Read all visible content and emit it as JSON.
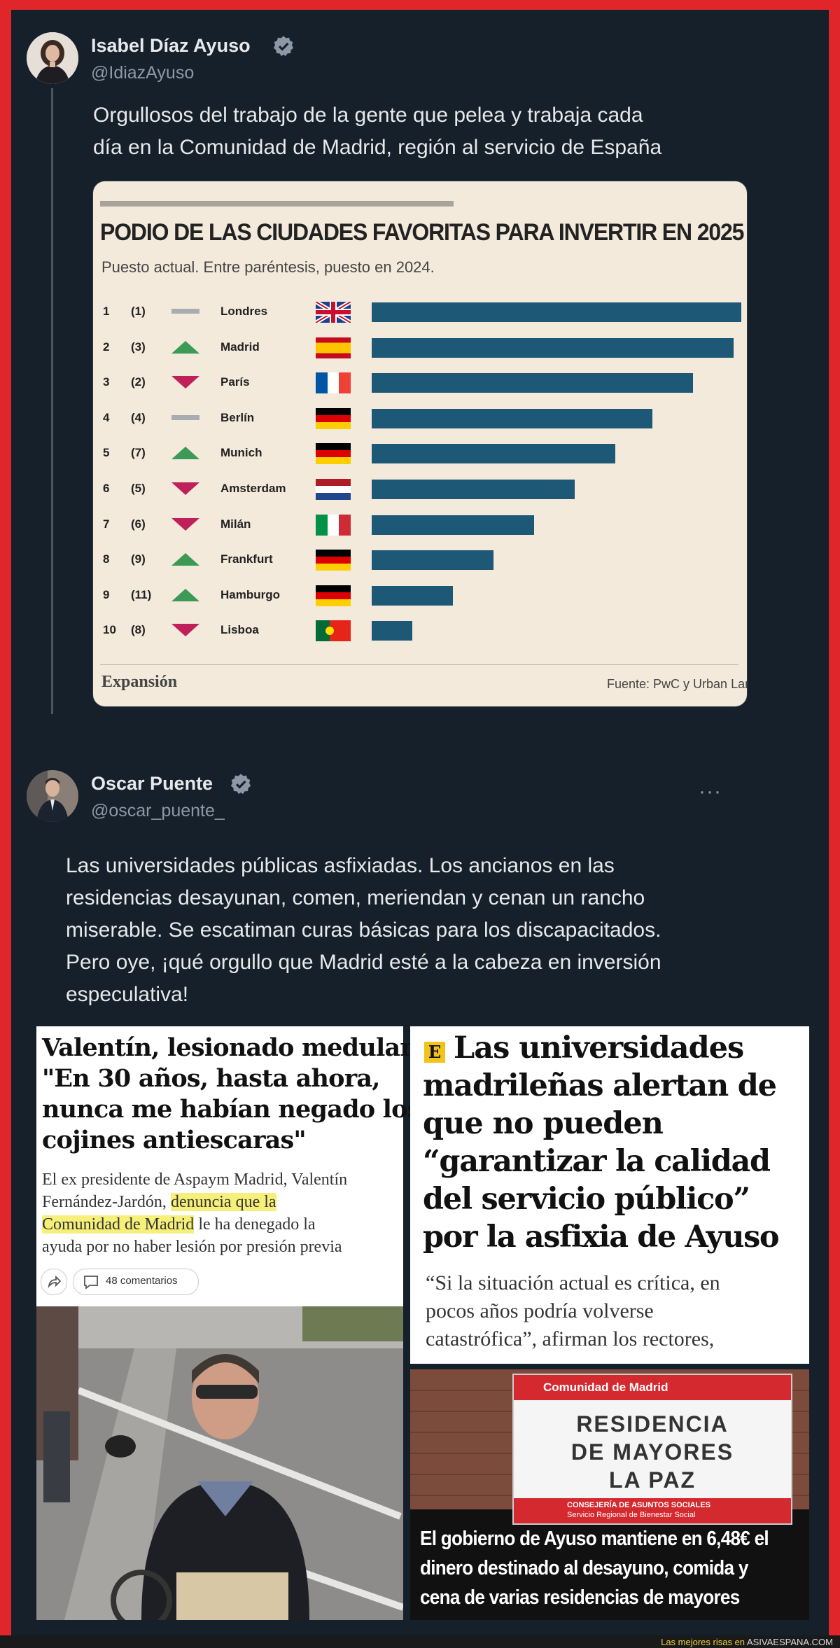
{
  "tweet1": {
    "name": "Isabel Díaz Ayuso",
    "handle": "@IdiazAyuso",
    "text_line1": "Orgullosos del trabajo de la gente que pelea y trabaja cada",
    "text_line2": "día en la Comunidad de Madrid, región al servicio de España"
  },
  "chart_data": {
    "type": "bar",
    "title": "PODIO DE LAS CIUDADES FAVORITAS PARA INVERTIR EN 2025",
    "subtitle": "Puesto actual. Entre paréntesis, puesto en 2024.",
    "categories": [
      "Londres",
      "Madrid",
      "París",
      "Berlín",
      "Munich",
      "Amsterdam",
      "Milán",
      "Frankfurt",
      "Hamburgo",
      "Lisboa"
    ],
    "rank": [
      "1",
      "2",
      "3",
      "4",
      "5",
      "6",
      "7",
      "8",
      "9",
      "10"
    ],
    "prev_rank": [
      "(1)",
      "(3)",
      "(2)",
      "(4)",
      "(7)",
      "(5)",
      "(6)",
      "(9)",
      "(11)",
      "(8)"
    ],
    "trend": [
      "same",
      "up",
      "down",
      "same",
      "up",
      "down",
      "down",
      "up",
      "up",
      "down"
    ],
    "flags": [
      "uk",
      "es",
      "fr",
      "de",
      "de",
      "nl",
      "it",
      "de",
      "de",
      "pt"
    ],
    "values": [
      10,
      9.8,
      8.7,
      7.6,
      6.6,
      5.5,
      4.4,
      3.3,
      2.2,
      1.1
    ],
    "xlim": [
      0,
      10
    ],
    "source_logo": "Expansión",
    "source": "Fuente: PwC y Urban Lan"
  },
  "tweet2": {
    "name": "Oscar Puente",
    "handle": "@oscar_puente_",
    "more": "···",
    "lines": [
      "Las universidades públicas asfixiadas. Los ancianos en las",
      "residencias desayunan, comen, meriendan y cenan un rancho",
      "miserable. Se escatiman curas básicas para los discapacitados.",
      "Pero oye, ¡qué orgullo que Madrid esté a la cabeza en inversión",
      "especulativa!"
    ]
  },
  "clip1": {
    "headline": [
      "Valentín, lesionado medular:",
      "\"En 30 años, hasta ahora,",
      "nunca me habían negado los",
      "cojines antiescaras\""
    ],
    "body1": "El ex presidente de Aspaym Madrid, Valentín",
    "body2a": "Fernández-Jardón, ",
    "body2b": "denuncia que la",
    "body3a": "Comunidad de Madrid",
    "body3b": " le ha denegado la",
    "body4": "ayuda por no haber lesión por presión previa",
    "comments": "48 comentarios"
  },
  "clip2": {
    "logo": "E",
    "headline": [
      "Las universidades",
      "madrileñas alertan de",
      "que no pueden",
      "“garantizar la calidad",
      "del servicio público”",
      "por la asfixia de Ayuso"
    ],
    "quote": [
      "“Si la situación actual es crítica, en",
      "pocos años podría volverse",
      "catastrófica”, afirman los rectores,"
    ]
  },
  "clip3": {
    "sign_header": "Comunidad de Madrid",
    "sign_lines": [
      "RESIDENCIA",
      "DE MAYORES",
      "LA PAZ"
    ],
    "sign_footer1": "CONSEJERÍA DE ASUNTOS SOCIALES",
    "sign_footer2": "Servicio Regional de Bienestar Social",
    "caption": [
      "El gobierno de Ayuso mantiene en 6,48€ el",
      "dinero destinado al desayuno, comida y",
      "cena de varias residencias de mayores"
    ]
  },
  "footer": {
    "prefix": "Las mejores risas en ",
    "site": "ASIVAESPANA.COM"
  },
  "colors": {
    "bar": "#1d5876",
    "up": "#3c9a56",
    "down": "#c0205a",
    "verified": "#8b98a5",
    "highlight": "#f6f07a"
  }
}
